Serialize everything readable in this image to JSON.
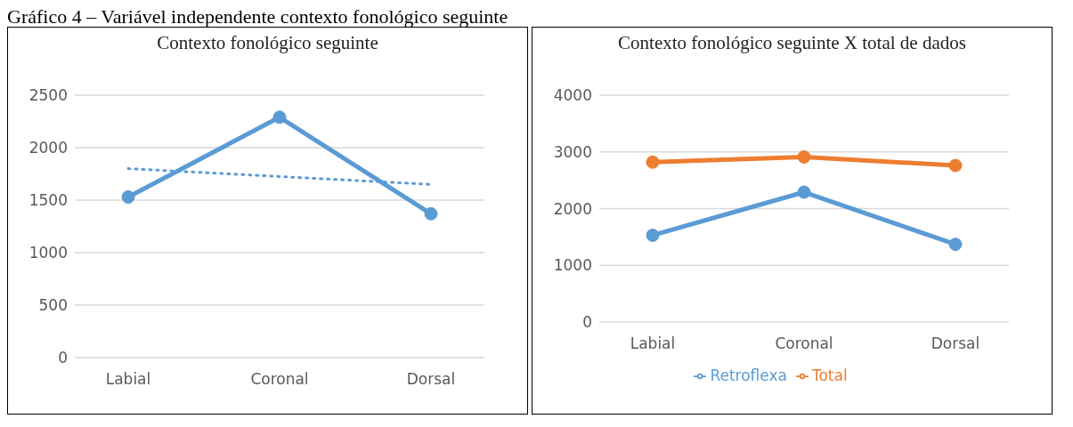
{
  "chart_data": [
    {
      "type": "line",
      "title": "Contexto fonológico seguinte",
      "annotations": [
        "Gráfico 4 – Variável independente contexto fonológico seguinte"
      ],
      "categories": [
        "Labial",
        "Coronal",
        "Dorsal"
      ],
      "ylim": [
        0,
        2500
      ],
      "yticks": [
        0,
        500,
        1000,
        1500,
        2000,
        2500
      ],
      "grid": "y",
      "legend": false,
      "marker": "circle",
      "series": [
        {
          "color": "#5b9bd5",
          "values": [
            1530,
            2290,
            1370
          ]
        },
        {
          "type": "line",
          "color": "#5b9bd5",
          "values": [
            1800,
            null,
            1650
          ],
          "marker": "none",
          "line_style": "dotted"
        }
      ]
    },
    {
      "type": "line",
      "title": "Contexto fonológico seguinte X total de dados",
      "categories": [
        "Labial",
        "Coronal",
        "Dorsal"
      ],
      "ylim": [
        0,
        4000
      ],
      "yticks": [
        0,
        1000,
        2000,
        3000,
        4000
      ],
      "grid": "y",
      "legend": "bottom",
      "marker": "circle",
      "series": [
        {
          "name": "Retroflexa",
          "color": "#5b9bd5",
          "values": [
            1530,
            2290,
            1370
          ]
        },
        {
          "name": "Total",
          "color": "#ed7d31",
          "values": [
            2820,
            2910,
            2760
          ]
        }
      ]
    }
  ]
}
